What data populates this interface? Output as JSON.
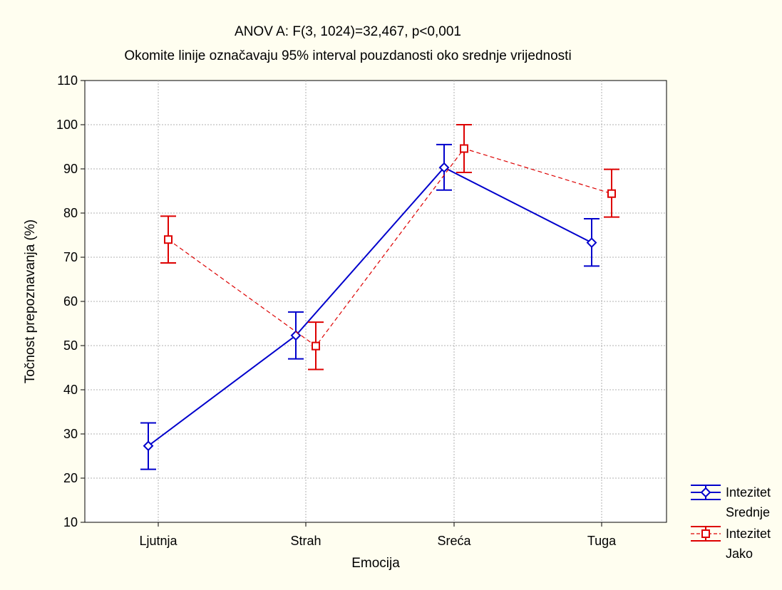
{
  "chart_data": {
    "type": "line",
    "title": "ANOV A: F(3, 1024)=32,467, p<0,001",
    "subtitle": "Okomite linije označavaju 95% interval pouzdanosti oko srednje vrijednosti",
    "xlabel": "Emocija",
    "ylabel": "Točnost prepoznavanja (%)",
    "categories": [
      "Ljutnja",
      "Strah",
      "Sreća",
      "Tuga"
    ],
    "ylim": [
      10,
      110
    ],
    "yticks": [
      "10",
      "20",
      "30",
      "40",
      "50",
      "60",
      "70",
      "80",
      "90",
      "100",
      "110"
    ],
    "grid": true,
    "legend_position": "bottom-right, outside plot",
    "series": [
      {
        "name": "Intezitet Srednje",
        "legend_line1": "Intezitet",
        "legend_line2": "Srednje",
        "color": "#0000cc",
        "line_style": "solid",
        "marker": "diamond",
        "values": [
          27.3,
          52.3,
          90.3,
          73.3
        ],
        "ci_low": [
          22.0,
          47.0,
          85.2,
          68.0
        ],
        "ci_high": [
          32.5,
          57.6,
          95.5,
          78.7
        ]
      },
      {
        "name": "Intezitet Jako",
        "legend_line1": "Intezitet",
        "legend_line2": "Jako",
        "color": "#dd0000",
        "line_style": "dashed",
        "marker": "square",
        "values": [
          74.0,
          49.9,
          94.6,
          84.4
        ],
        "ci_low": [
          68.7,
          44.6,
          89.2,
          79.1
        ],
        "ci_high": [
          79.3,
          55.3,
          100.0,
          89.9
        ]
      }
    ]
  }
}
